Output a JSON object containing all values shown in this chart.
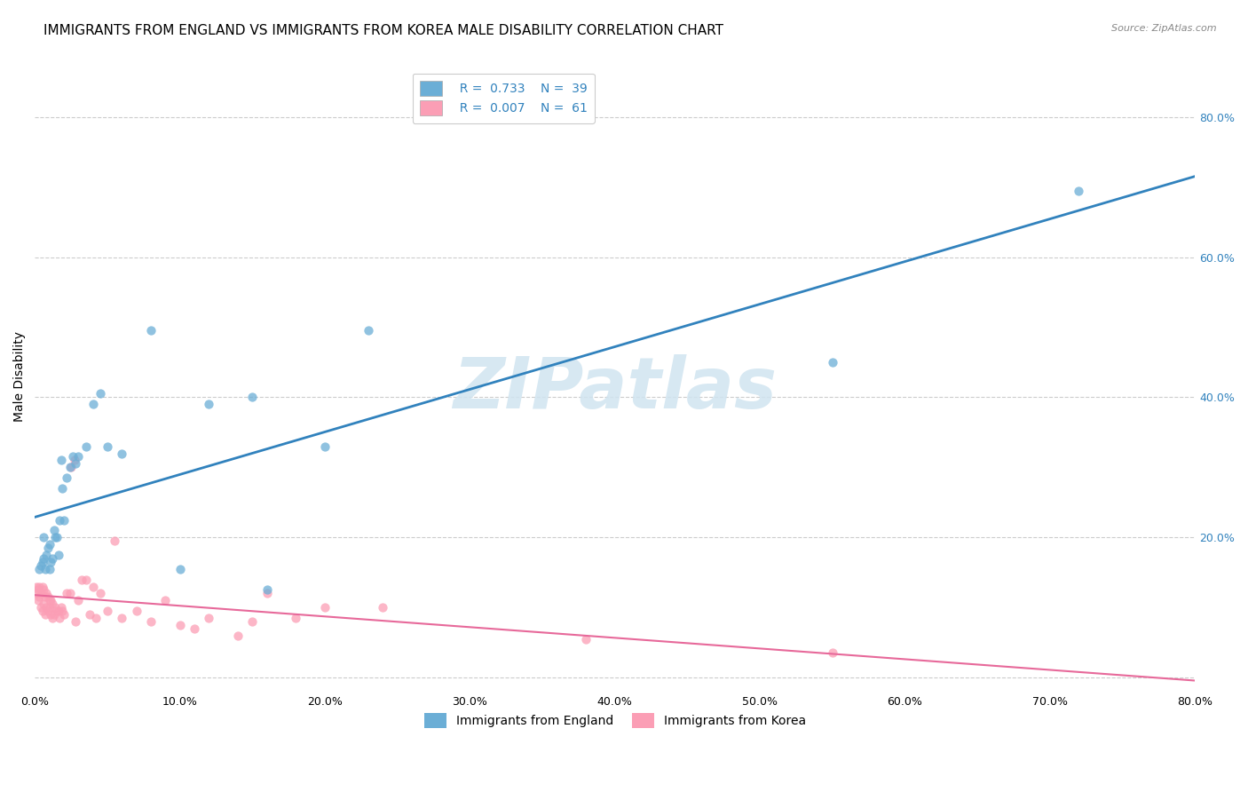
{
  "title": "IMMIGRANTS FROM ENGLAND VS IMMIGRANTS FROM KOREA MALE DISABILITY CORRELATION CHART",
  "source": "Source: ZipAtlas.com",
  "ylabel": "Male Disability",
  "xlim": [
    0.0,
    0.8
  ],
  "ylim": [
    -0.02,
    0.88
  ],
  "xticks": [
    0.0,
    0.1,
    0.2,
    0.3,
    0.4,
    0.5,
    0.6,
    0.7,
    0.8
  ],
  "yticks": [
    0.0,
    0.2,
    0.4,
    0.6,
    0.8
  ],
  "xtick_labels": [
    "0.0%",
    "10.0%",
    "20.0%",
    "30.0%",
    "40.0%",
    "50.0%",
    "60.0%",
    "70.0%",
    "80.0%"
  ],
  "ytick_labels_right": [
    "",
    "20.0%",
    "40.0%",
    "60.0%",
    "80.0%"
  ],
  "england_color": "#6baed6",
  "korea_color": "#fb9eb5",
  "england_line_color": "#3182bd",
  "korea_line_color": "#e7699a",
  "england_R": 0.733,
  "england_N": 39,
  "korea_R": 0.007,
  "korea_N": 61,
  "legend_label_england": "Immigrants from England",
  "legend_label_korea": "Immigrants from Korea",
  "england_x": [
    0.003,
    0.004,
    0.005,
    0.006,
    0.006,
    0.007,
    0.008,
    0.009,
    0.01,
    0.01,
    0.011,
    0.012,
    0.013,
    0.014,
    0.015,
    0.016,
    0.017,
    0.018,
    0.019,
    0.02,
    0.022,
    0.024,
    0.026,
    0.028,
    0.03,
    0.035,
    0.04,
    0.045,
    0.05,
    0.06,
    0.08,
    0.1,
    0.12,
    0.15,
    0.16,
    0.2,
    0.23,
    0.55,
    0.72
  ],
  "england_y": [
    0.155,
    0.16,
    0.165,
    0.17,
    0.2,
    0.155,
    0.175,
    0.185,
    0.155,
    0.19,
    0.165,
    0.17,
    0.21,
    0.2,
    0.2,
    0.175,
    0.225,
    0.31,
    0.27,
    0.225,
    0.285,
    0.3,
    0.315,
    0.305,
    0.315,
    0.33,
    0.39,
    0.405,
    0.33,
    0.32,
    0.495,
    0.155,
    0.39,
    0.4,
    0.125,
    0.33,
    0.495,
    0.45,
    0.695
  ],
  "korea_x": [
    0.001,
    0.001,
    0.002,
    0.002,
    0.003,
    0.003,
    0.004,
    0.004,
    0.005,
    0.005,
    0.006,
    0.006,
    0.007,
    0.007,
    0.008,
    0.008,
    0.009,
    0.009,
    0.01,
    0.01,
    0.011,
    0.011,
    0.012,
    0.012,
    0.013,
    0.014,
    0.015,
    0.016,
    0.017,
    0.018,
    0.019,
    0.02,
    0.022,
    0.024,
    0.025,
    0.027,
    0.028,
    0.03,
    0.032,
    0.035,
    0.038,
    0.04,
    0.042,
    0.045,
    0.05,
    0.055,
    0.06,
    0.07,
    0.08,
    0.09,
    0.1,
    0.11,
    0.12,
    0.14,
    0.15,
    0.16,
    0.18,
    0.2,
    0.24,
    0.38,
    0.55
  ],
  "korea_y": [
    0.12,
    0.13,
    0.11,
    0.125,
    0.115,
    0.13,
    0.1,
    0.12,
    0.095,
    0.13,
    0.105,
    0.125,
    0.09,
    0.115,
    0.1,
    0.12,
    0.095,
    0.115,
    0.1,
    0.11,
    0.09,
    0.11,
    0.085,
    0.105,
    0.09,
    0.1,
    0.095,
    0.095,
    0.085,
    0.1,
    0.095,
    0.09,
    0.12,
    0.12,
    0.3,
    0.31,
    0.08,
    0.11,
    0.14,
    0.14,
    0.09,
    0.13,
    0.085,
    0.12,
    0.095,
    0.195,
    0.085,
    0.095,
    0.08,
    0.11,
    0.075,
    0.07,
    0.085,
    0.06,
    0.08,
    0.12,
    0.085,
    0.1,
    0.1,
    0.055,
    0.035
  ],
  "background_color": "#ffffff",
  "grid_color": "#cccccc",
  "title_fontsize": 11,
  "axis_label_fontsize": 10,
  "tick_fontsize": 9,
  "legend_fontsize": 10,
  "watermark": "ZIPatlas",
  "watermark_color": "#d0e4f0"
}
